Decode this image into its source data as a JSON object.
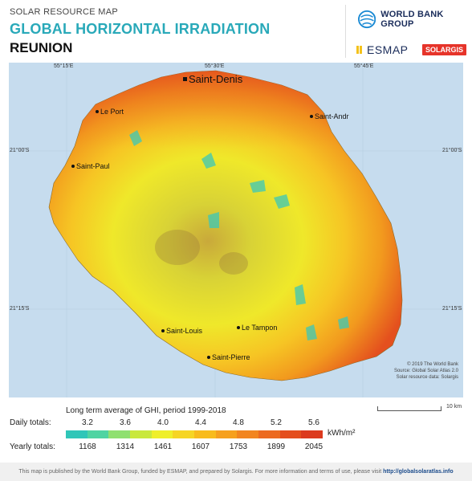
{
  "header": {
    "supertitle": "SOLAR RESOURCE MAP",
    "title": "GLOBAL HORIZONTAL IRRADIATION",
    "country": "REUNION",
    "logos": {
      "world_bank": "WORLD BANK GROUP",
      "esmap": "ESMAP",
      "solargis": "SOLARGIS"
    }
  },
  "map": {
    "lon_ticks": [
      "55°15'E",
      "55°30'E",
      "55°45'E"
    ],
    "lat_ticks": [
      "21°00'S",
      "21°15'S"
    ],
    "cities": [
      {
        "name": "Saint-Denis",
        "capital": true
      },
      {
        "name": "Le Port",
        "capital": false
      },
      {
        "name": "Saint-Andr",
        "capital": false
      },
      {
        "name": "Saint-Paul",
        "capital": false
      },
      {
        "name": "Saint-Louis",
        "capital": false
      },
      {
        "name": "Le Tampon",
        "capital": false
      },
      {
        "name": "Saint-Pierre",
        "capital": false
      }
    ],
    "credits": [
      "© 2019 The World Bank",
      "Source: Global Solar Atlas 2.0",
      "Solar resource data: Solargis"
    ]
  },
  "legend": {
    "title": "Long term average of GHI, period 1999-2018",
    "daily_label": "Daily totals:",
    "yearly_label": "Yearly totals:",
    "daily": [
      "3.2",
      "3.6",
      "4.0",
      "4.4",
      "4.8",
      "5.2",
      "5.6"
    ],
    "yearly": [
      "1168",
      "1314",
      "1461",
      "1607",
      "1753",
      "1899",
      "2045"
    ],
    "unit": "kWh/m²",
    "colors": [
      "#30c6b8",
      "#4fd4a2",
      "#8fe070",
      "#c9e83c",
      "#efef2a",
      "#f6d524",
      "#f8bb1c",
      "#f6a01e",
      "#f28520",
      "#ec6a20",
      "#e44e1e",
      "#dc3a1e"
    ],
    "scale_label": "10 km"
  },
  "footer": {
    "text": "This map is published by the World Bank Group, funded by ESMAP, and prepared by Solargis. For more information and terms of use, please visit",
    "link": "http://globalsolaratlas.info"
  }
}
